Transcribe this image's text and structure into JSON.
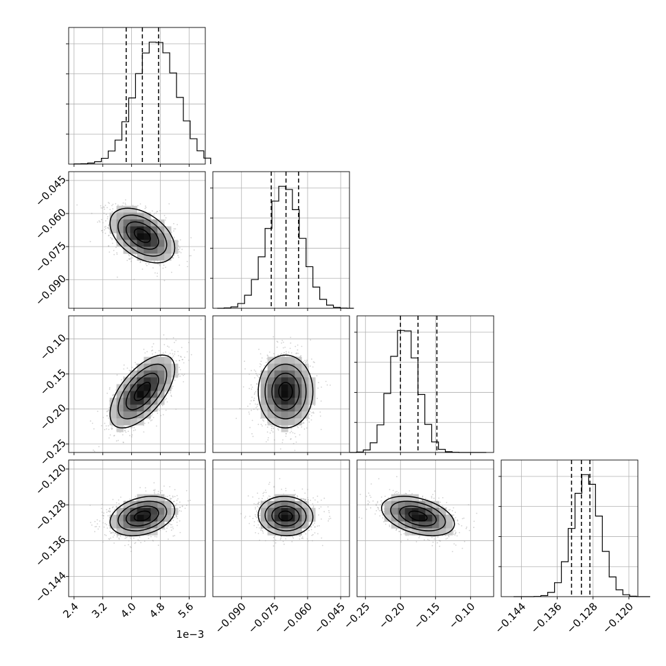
{
  "chart_data": {
    "type": "corner",
    "x_offset_text": "1e−3",
    "grid": true,
    "colors": {
      "frame": "#000000",
      "grid": "#b0b0b0",
      "histogram": "#000000",
      "contour": "#000000",
      "scatter": "#9a9a9a",
      "density_dark": "#000000",
      "density_light": "#ffffff"
    },
    "parameters": [
      {
        "range": [
          2.25,
          6.05
        ],
        "ticks": [
          2.4,
          3.2,
          4.0,
          4.8,
          5.6
        ],
        "tick_labels": [
          "2.4",
          "3.2",
          "4.0",
          "4.8",
          "5.6"
        ],
        "quantiles": [
          3.85,
          4.3,
          4.75
        ],
        "mean": 4.3,
        "std": 0.45
      },
      {
        "range": [
          -0.103,
          -0.041
        ],
        "ticks": [
          -0.09,
          -0.075,
          -0.06,
          -0.045
        ],
        "tick_labels": [
          "−0.090",
          "−0.075",
          "−0.060",
          "−0.045"
        ],
        "quantiles": [
          -0.0765,
          -0.0698,
          -0.0641
        ],
        "mean": -0.07,
        "std": 0.0062
      },
      {
        "range": [
          -0.262,
          -0.067
        ],
        "ticks": [
          -0.25,
          -0.2,
          -0.15,
          -0.1
        ],
        "tick_labels": [
          "−0.25",
          "−0.20",
          "−0.15",
          "−0.10"
        ],
        "quantiles": [
          -0.2,
          -0.175,
          -0.148
        ],
        "mean": -0.175,
        "std": 0.026
      },
      {
        "range": [
          -0.1485,
          -0.118
        ],
        "ticks": [
          -0.144,
          -0.136,
          -0.128,
          -0.12
        ],
        "tick_labels": [
          "−0.144",
          "−0.136",
          "−0.128",
          "−0.120"
        ],
        "quantiles": [
          -0.1328,
          -0.1306,
          -0.1287
        ],
        "mean": -0.1305,
        "std": 0.0022
      }
    ],
    "histograms": [
      {
        "param": 0,
        "bin_width": 0.19,
        "counts": [
          1,
          2,
          6,
          14,
          34,
          77,
          141,
          249,
          389,
          532,
          653,
          717,
          715,
          654,
          536,
          392,
          254,
          149,
          78,
          35
        ]
      },
      {
        "param": 1,
        "bin_width": 0.0031,
        "counts": [
          0,
          2,
          7,
          24,
          66,
          145,
          260,
          403,
          541,
          616,
          600,
          498,
          353,
          210,
          107,
          45,
          16,
          5,
          1,
          0
        ]
      },
      {
        "param": 2,
        "bin_width": 0.00975,
        "counts": [
          0,
          3,
          16,
          62,
          176,
          376,
          613,
          778,
          775,
          603,
          370,
          179,
          67,
          20,
          5,
          1,
          0,
          0,
          0,
          0
        ]
      },
      {
        "param": 3,
        "bin_width": 0.001525,
        "counts": [
          0,
          0,
          0,
          1,
          5,
          20,
          65,
          163,
          318,
          482,
          569,
          524,
          376,
          211,
          92,
          32,
          9,
          2,
          0,
          0
        ]
      }
    ],
    "correlations": [
      {
        "x": 0,
        "y": 1,
        "rho": -0.45
      },
      {
        "x": 0,
        "y": 2,
        "rho": 0.62
      },
      {
        "x": 1,
        "y": 2,
        "rho": 0.0
      },
      {
        "x": 0,
        "y": 3,
        "rho": 0.3
      },
      {
        "x": 1,
        "y": 3,
        "rho": -0.05
      },
      {
        "x": 2,
        "y": 3,
        "rho": -0.4
      }
    ],
    "contour_levels": [
      0.5,
      1.0,
      1.5,
      2.0
    ],
    "density_grid_bins": 20
  }
}
